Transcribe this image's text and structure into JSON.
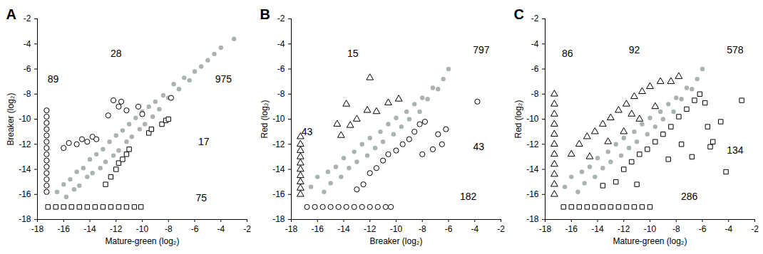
{
  "chart_data": [
    {
      "type": "scatter",
      "title": "A",
      "xlabel": "Mature-green (log₂)",
      "ylabel": "Breaker (log₂)",
      "xlim": [
        -18,
        -2
      ],
      "ylim": [
        -18,
        -2
      ],
      "xticks": [
        -18,
        -16,
        -14,
        -12,
        -10,
        -8,
        -6,
        -4,
        -2
      ],
      "yticks": [
        -18,
        -16,
        -14,
        -12,
        -10,
        -8,
        -6,
        -4,
        -2
      ],
      "series": [
        {
          "color": "#a9b3af",
          "marker": "dot",
          "x": [
            -16.5,
            -16,
            -15.8,
            -15.5,
            -15.2,
            -15,
            -14.8,
            -14.5,
            -14.2,
            -14,
            -13.8,
            -13.5,
            -13.2,
            -13,
            -12.8,
            -12.5,
            -12.2,
            -12,
            -11.8,
            -11.5,
            -11.2,
            -11,
            -10.8,
            -10.5,
            -10.2,
            -10,
            -9.8,
            -9.5,
            -9.2,
            -9,
            -8.7,
            -8.4,
            -8,
            -7.6,
            -7.2,
            -6.8,
            -6.4,
            -6,
            -5.5,
            -5,
            -4.5,
            -4,
            -3
          ],
          "y": [
            -15.8,
            -15.2,
            -16.2,
            -14.8,
            -15.6,
            -14.2,
            -15.3,
            -13.9,
            -14.6,
            -13.2,
            -14.3,
            -12.8,
            -13.9,
            -12.4,
            -13.4,
            -11.8,
            -12.9,
            -11.3,
            -12.5,
            -10.9,
            -11.8,
            -10.4,
            -11.4,
            -9.9,
            -10.8,
            -9.4,
            -10.4,
            -9,
            -9.8,
            -8.6,
            -9.2,
            -8.1,
            -8.3,
            -7.2,
            -7.6,
            -6.7,
            -6.9,
            -6.2,
            -5.8,
            -5.3,
            -4.8,
            -4.3,
            -3.6
          ]
        },
        {
          "color": "#000000",
          "marker": "circle",
          "x": [
            -17.3,
            -17.3,
            -17.3,
            -17.3,
            -17.3,
            -17.3,
            -17.3,
            -17.3,
            -17.3,
            -17.3,
            -17.3,
            -17.3,
            -17.3,
            -17.3,
            -16,
            -15.6,
            -15,
            -14.6,
            -14.2,
            -13.8,
            -13.5,
            -12.2,
            -11.8,
            -11.6,
            -11.2,
            -12.6,
            -10.3,
            -10,
            -7.8
          ],
          "y": [
            -9.3,
            -9.8,
            -10.3,
            -10.8,
            -11.3,
            -11.8,
            -12.3,
            -12.8,
            -13.3,
            -13.8,
            -14.3,
            -14.8,
            -15.3,
            -15.8,
            -12.3,
            -11.9,
            -12,
            -11.6,
            -11.8,
            -11.4,
            -11.6,
            -8.5,
            -9,
            -8.6,
            -9.3,
            -9.7,
            -9,
            -9.6,
            -8.3
          ]
        },
        {
          "color": "#000000",
          "marker": "square",
          "x": [
            -17.2,
            -16.6,
            -16,
            -15.4,
            -14.8,
            -14.2,
            -13.6,
            -13,
            -12.4,
            -11.8,
            -11.2,
            -10.6,
            -10.1,
            -12.8,
            -12.4,
            -12,
            -11.8,
            -11.5,
            -11.2,
            -11,
            -9.5,
            -9.3,
            -8.5,
            -8.2,
            -8
          ],
          "y": [
            -17,
            -17,
            -17,
            -17,
            -17,
            -17,
            -17,
            -17,
            -17,
            -17,
            -17,
            -17,
            -17,
            -15.2,
            -14.6,
            -14,
            -13.5,
            -13.2,
            -12.8,
            -12.4,
            -11.1,
            -10.8,
            -10.4,
            -10.1,
            -10
          ]
        }
      ],
      "annotations": [
        {
          "text": "89",
          "x": -16.8,
          "y": -6.8
        },
        {
          "text": "28",
          "x": -12,
          "y": -4.8
        },
        {
          "text": "975",
          "x": -3.8,
          "y": -6.8
        },
        {
          "text": "17",
          "x": -5.3,
          "y": -11.8
        },
        {
          "text": "75",
          "x": -5.5,
          "y": -16.3
        }
      ]
    },
    {
      "type": "scatter",
      "title": "B",
      "xlabel": "Breaker (log₂)",
      "ylabel": "Red (log₂)",
      "xlim": [
        -18,
        -2
      ],
      "ylim": [
        -18,
        -2
      ],
      "xticks": [
        -18,
        -16,
        -14,
        -12,
        -10,
        -8,
        -6,
        -4,
        -2
      ],
      "yticks": [
        -18,
        -16,
        -14,
        -12,
        -10,
        -8,
        -6,
        -4,
        -2
      ],
      "series": [
        {
          "color": "#a9b3af",
          "marker": "dot",
          "x": [
            -16.5,
            -16,
            -15.5,
            -15.2,
            -15,
            -14.6,
            -14.2,
            -14,
            -13.6,
            -13.2,
            -13,
            -12.6,
            -12.2,
            -12,
            -11.6,
            -11.2,
            -11,
            -10.6,
            -10.2,
            -10,
            -9.6,
            -9.2,
            -9,
            -8.6,
            -8.2,
            -8,
            -7.6,
            -7.2,
            -6.8,
            -6.4,
            -6
          ],
          "y": [
            -15.4,
            -14.6,
            -15.8,
            -14.2,
            -15.1,
            -13.8,
            -14.6,
            -13.1,
            -13.9,
            -12.6,
            -13.4,
            -12,
            -12.9,
            -11.5,
            -12.3,
            -11,
            -11.8,
            -10.4,
            -11.2,
            -9.9,
            -10.6,
            -9.4,
            -10,
            -8.8,
            -9.4,
            -8.3,
            -8.4,
            -7.5,
            -7.6,
            -6.8,
            -6
          ]
        },
        {
          "color": "#000000",
          "marker": "triangle",
          "x": [
            -17.3,
            -17.3,
            -17.3,
            -17.3,
            -17.3,
            -17.3,
            -17.3,
            -17.3,
            -17.3,
            -17.3,
            -12,
            -13.8,
            -14.5,
            -13,
            -12.2,
            -11.5,
            -10.6,
            -9.8,
            -14.2,
            -13.5
          ],
          "y": [
            -11.4,
            -12,
            -12.5,
            -13,
            -13.5,
            -14,
            -14.5,
            -15,
            -15.5,
            -16,
            -6.7,
            -8.8,
            -10.4,
            -10,
            -9.3,
            -9.4,
            -8.7,
            -8.4,
            -11.3,
            -10.5
          ]
        },
        {
          "color": "#000000",
          "marker": "circle",
          "x": [
            -16.8,
            -16.2,
            -15.6,
            -15,
            -14.4,
            -13.8,
            -13.2,
            -12.6,
            -12,
            -11.4,
            -10.8,
            -10.4,
            -13,
            -12.5,
            -12,
            -11.5,
            -11,
            -10.6,
            -10,
            -9.5,
            -9,
            -8.6,
            -8.2,
            -7.8,
            -7.2,
            -6.8,
            -6.5,
            -6.2,
            -3.8,
            -8
          ],
          "y": [
            -17,
            -17,
            -17,
            -17,
            -17,
            -17,
            -17,
            -17,
            -17,
            -17,
            -17,
            -17,
            -15.6,
            -15.2,
            -14.3,
            -13.9,
            -13.3,
            -12.8,
            -12.5,
            -12,
            -11.6,
            -11,
            -10.4,
            -10.2,
            -12.4,
            -11.2,
            -12,
            -10.8,
            -8.6,
            -12.8
          ]
        }
      ],
      "annotations": [
        {
          "text": "43",
          "x": -16.8,
          "y": -11
        },
        {
          "text": "15",
          "x": -13.3,
          "y": -4.8
        },
        {
          "text": "797",
          "x": -3.5,
          "y": -4.5
        },
        {
          "text": "43",
          "x": -3.7,
          "y": -12.2
        },
        {
          "text": "182",
          "x": -4.5,
          "y": -16.2
        }
      ]
    },
    {
      "type": "scatter",
      "title": "C",
      "xlabel": "Mature-green (log₂)",
      "ylabel": "Red (log₂)",
      "xlim": [
        -18,
        -2
      ],
      "ylim": [
        -18,
        -2
      ],
      "xticks": [
        -18,
        -16,
        -14,
        -12,
        -10,
        -8,
        -6,
        -4,
        -2
      ],
      "yticks": [
        -18,
        -16,
        -14,
        -12,
        -10,
        -8,
        -6,
        -4,
        -2
      ],
      "series": [
        {
          "color": "#a9b3af",
          "marker": "dot",
          "x": [
            -16.5,
            -16,
            -15.5,
            -15.2,
            -15,
            -14.6,
            -14.2,
            -14,
            -13.6,
            -13.2,
            -13,
            -12.6,
            -12.2,
            -12,
            -11.6,
            -11.2,
            -11,
            -10.6,
            -10.2,
            -10,
            -9.6,
            -9.2,
            -9,
            -8.6,
            -8.2,
            -8,
            -7.6,
            -7.2,
            -6.8,
            -6.4,
            -6
          ],
          "y": [
            -15.4,
            -14.6,
            -15.8,
            -14.2,
            -15.1,
            -13.8,
            -14.6,
            -13.1,
            -13.9,
            -12.6,
            -13.4,
            -12,
            -12.9,
            -11.5,
            -12.3,
            -11,
            -11.8,
            -10.4,
            -11.2,
            -9.9,
            -10.6,
            -9.4,
            -10,
            -8.8,
            -9.4,
            -8.3,
            -8.4,
            -7.5,
            -7.6,
            -6.8,
            -6
          ]
        },
        {
          "color": "#000000",
          "marker": "triangle",
          "x": [
            -17.3,
            -17.3,
            -17.3,
            -17.3,
            -17.3,
            -17.3,
            -17.3,
            -17.3,
            -17.3,
            -17.3,
            -17.3,
            -16,
            -15.4,
            -14.8,
            -14.2,
            -13.6,
            -13,
            -12.4,
            -11.8,
            -11.2,
            -10.6,
            -10,
            -9.2,
            -8.4,
            -7.8,
            -12,
            -13.2,
            -10.8,
            -9.6,
            -14.6,
            -11.4
          ],
          "y": [
            -8,
            -8.8,
            -9.6,
            -10.4,
            -11.2,
            -12,
            -12.8,
            -13.6,
            -14.4,
            -15.2,
            -16,
            -12.8,
            -12,
            -11.4,
            -11,
            -10.4,
            -9.9,
            -9.3,
            -8.8,
            -8.2,
            -7.8,
            -7.4,
            -7,
            -7,
            -6.6,
            -11,
            -11.8,
            -10,
            -9,
            -13,
            -9.6
          ]
        },
        {
          "color": "#000000",
          "marker": "square",
          "x": [
            -16.6,
            -16,
            -15.4,
            -14.8,
            -14.2,
            -13.6,
            -13,
            -12.4,
            -11.8,
            -11.2,
            -10.6,
            -10,
            -13.6,
            -12.6,
            -12,
            -11.4,
            -10.8,
            -10.2,
            -9.6,
            -9,
            -8.4,
            -7.8,
            -7.2,
            -6.6,
            -6.2,
            -5.8,
            -5.6,
            -5.2,
            -4.6,
            -4.2,
            -3,
            -6.8,
            -7.6,
            -8.6,
            -11,
            -5.4
          ],
          "y": [
            -17,
            -17,
            -17,
            -17,
            -17,
            -17,
            -17,
            -17,
            -17,
            -17,
            -17,
            -17,
            -15.3,
            -15,
            -14,
            -13.4,
            -12.8,
            -12.4,
            -11.8,
            -11.2,
            -10.6,
            -9.8,
            -9.2,
            -8.5,
            -8,
            -8.7,
            -10.6,
            -11.8,
            -10.2,
            -14.2,
            -8.5,
            -13,
            -12,
            -13.2,
            -15.2,
            -12.2
          ]
        }
      ],
      "annotations": [
        {
          "text": "86",
          "x": -16.3,
          "y": -4.8
        },
        {
          "text": "92",
          "x": -11.2,
          "y": -4.5
        },
        {
          "text": "578",
          "x": -3.5,
          "y": -4.5
        },
        {
          "text": "134",
          "x": -3.5,
          "y": -12.5
        },
        {
          "text": "286",
          "x": -7,
          "y": -16.2
        }
      ]
    }
  ]
}
